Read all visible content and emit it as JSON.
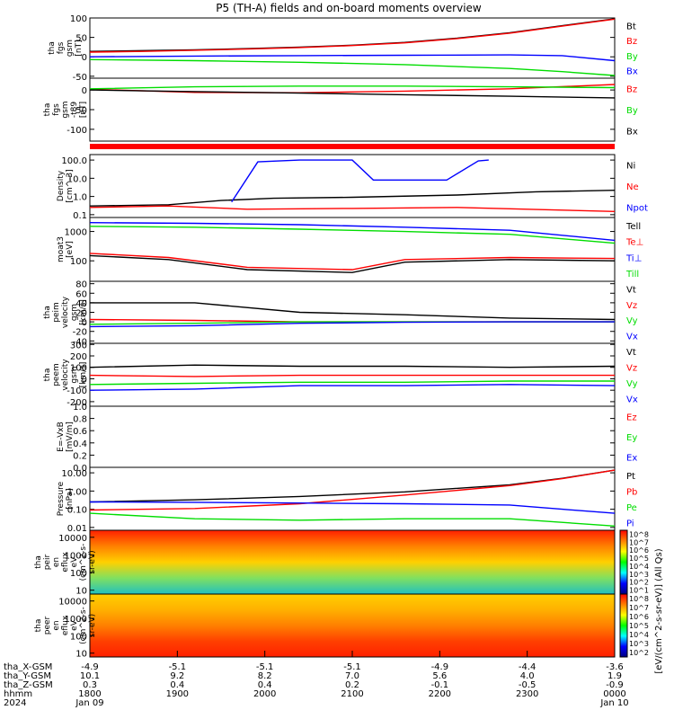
{
  "chart_data": {
    "type": "line",
    "title": "P5 (TH-A) fields and on-board moments overview",
    "panels": [
      {
        "id": "fgs",
        "ylabel": [
          "tha",
          "fgs",
          "gsm",
          "[nT]"
        ],
        "yscale": "linear",
        "ylim": [
          -55,
          100
        ],
        "ticks": [
          100,
          50,
          0,
          -50
        ],
        "series": [
          {
            "name": "Bt",
            "color": "#000000",
            "x": [
              0,
              0.1,
              0.2,
              0.3,
              0.4,
              0.5,
              0.6,
              0.7,
              0.8,
              0.9,
              1.0
            ],
            "y": [
              14,
              16,
              18,
              21,
              25,
              30,
              37,
              48,
              62,
              80,
              98
            ]
          },
          {
            "name": "Bz",
            "color": "#ff0000",
            "x": [
              0,
              0.1,
              0.2,
              0.3,
              0.4,
              0.5,
              0.6,
              0.7,
              0.8,
              0.9,
              1.0
            ],
            "y": [
              12,
              14,
              17,
              20,
              24,
              29,
              36,
              47,
              61,
              79,
              97
            ]
          },
          {
            "name": "By",
            "color": "#00dd00",
            "x": [
              0,
              0.2,
              0.4,
              0.6,
              0.8,
              0.9,
              1.0
            ],
            "y": [
              -7,
              -10,
              -14,
              -20,
              -30,
              -38,
              -48
            ]
          },
          {
            "name": "Bx",
            "color": "#0000ff",
            "x": [
              0,
              0.2,
              0.4,
              0.6,
              0.8,
              0.9,
              1.0
            ],
            "y": [
              0,
              2,
              3,
              4,
              5,
              3,
              -10
            ]
          }
        ]
      },
      {
        "id": "fgs-t89",
        "ylabel": [
          "tha",
          "fgs",
          "gsm",
          "-t89",
          "[nT]"
        ],
        "yscale": "linear",
        "ylim": [
          -130,
          30
        ],
        "ticks": [
          0,
          -50,
          -100
        ],
        "series": [
          {
            "name": "Bz",
            "color": "#ff0000",
            "x": [
              0,
              0.2,
              0.4,
              0.6,
              0.8,
              1.0
            ],
            "y": [
              2,
              -6,
              -7,
              -3,
              3,
              14
            ]
          },
          {
            "name": "By",
            "color": "#00dd00",
            "x": [
              0,
              0.2,
              0.4,
              0.6,
              0.8,
              1.0
            ],
            "y": [
              3,
              8,
              10,
              10,
              8,
              6
            ]
          },
          {
            "name": "Bx",
            "color": "#000000",
            "x": [
              0,
              0.2,
              0.4,
              0.6,
              0.8,
              1.0
            ],
            "y": [
              0,
              -4,
              -8,
              -12,
              -16,
              -20
            ]
          }
        ]
      },
      {
        "id": "density",
        "ylabel": [
          "Density",
          "[cm^-3]"
        ],
        "yscale": "log",
        "ylim": [
          0.07,
          200
        ],
        "ticks": [
          100.0,
          10.0,
          1.0,
          0.1
        ],
        "tick_labels": [
          "100.0",
          "10.0",
          "1.0",
          "0.1"
        ],
        "series": [
          {
            "name": "Ni",
            "color": "#000000",
            "x": [
              0,
              0.15,
              0.25,
              0.35,
              0.5,
              0.7,
              0.85,
              1.0
            ],
            "y": [
              0.3,
              0.35,
              0.6,
              0.8,
              0.9,
              1.2,
              1.8,
              2.2
            ]
          },
          {
            "name": "Ne",
            "color": "#ff0000",
            "x": [
              0,
              0.15,
              0.3,
              0.5,
              0.7,
              1.0
            ],
            "y": [
              0.25,
              0.3,
              0.2,
              0.22,
              0.25,
              0.15
            ]
          },
          {
            "name": "Npot",
            "color": "#0000ff",
            "x": [
              0.27,
              0.32,
              0.4,
              0.5,
              0.54,
              0.58,
              0.64,
              0.68,
              0.74,
              0.76
            ],
            "y": [
              0.5,
              80,
              100,
              100,
              8,
              8,
              8,
              8,
              90,
              100
            ]
          }
        ]
      },
      {
        "id": "temperature",
        "ylabel": [
          "moat3",
          "[eV]"
        ],
        "yscale": "log",
        "ylim": [
          20,
          3000
        ],
        "ticks": [
          1000,
          100
        ],
        "series": [
          {
            "name": "Tell",
            "color": "#000000",
            "x": [
              0,
              0.15,
              0.3,
              0.5,
              0.6,
              0.8,
              1.0
            ],
            "y": [
              150,
              110,
              50,
              40,
              90,
              110,
              100
            ]
          },
          {
            "name": "Te⊥",
            "color": "#ff0000",
            "x": [
              0,
              0.15,
              0.3,
              0.5,
              0.6,
              0.8,
              1.0
            ],
            "y": [
              180,
              130,
              60,
              50,
              110,
              130,
              120
            ]
          },
          {
            "name": "Ti⊥",
            "color": "#0000ff",
            "x": [
              0,
              0.2,
              0.4,
              0.6,
              0.8,
              1.0
            ],
            "y": [
              2000,
              1900,
              1700,
              1400,
              1100,
              500
            ]
          },
          {
            "name": "Till",
            "color": "#00dd00",
            "x": [
              0,
              0.2,
              0.4,
              0.6,
              0.8,
              1.0
            ],
            "y": [
              1500,
              1400,
              1200,
              1000,
              800,
              400
            ]
          }
        ]
      },
      {
        "id": "peim-velocity",
        "ylabel": [
          "tha",
          "peim",
          "velocity",
          "gsm",
          "[km/s]"
        ],
        "yscale": "linear",
        "ylim": [
          -45,
          85
        ],
        "ticks": [
          80,
          60,
          40,
          20,
          0,
          -20,
          -40
        ],
        "series": [
          {
            "name": "Vt",
            "color": "#000000",
            "x": [
              0,
              0.2,
              0.4,
              0.6,
              0.8,
              1.0
            ],
            "y": [
              40,
              40,
              20,
              15,
              8,
              5
            ]
          },
          {
            "name": "Vz",
            "color": "#ff0000",
            "x": [
              0,
              0.2,
              0.4,
              0.6,
              0.8,
              1.0
            ],
            "y": [
              5,
              3,
              0,
              0,
              0,
              0
            ]
          },
          {
            "name": "Vy",
            "color": "#00dd00",
            "x": [
              0,
              0.2,
              0.4,
              0.6,
              0.8,
              1.0
            ],
            "y": [
              -5,
              -3,
              0,
              0,
              0,
              0
            ]
          },
          {
            "name": "Vx",
            "color": "#0000ff",
            "x": [
              0,
              0.2,
              0.4,
              0.6,
              0.8,
              1.0
            ],
            "y": [
              -10,
              -8,
              -3,
              -1,
              0,
              0
            ]
          }
        ]
      },
      {
        "id": "peem-velocity",
        "ylabel": [
          "tha",
          "peem",
          "velocity",
          "gsm",
          "[km/s]"
        ],
        "yscale": "linear",
        "ylim": [
          -240,
          310
        ],
        "ticks": [
          300,
          200,
          100,
          0,
          -100,
          -200
        ],
        "series": [
          {
            "name": "Vt",
            "color": "#000000",
            "x": [
              0,
              0.2,
              0.4,
              0.6,
              0.8,
              1.0
            ],
            "y": [
              100,
              120,
              110,
              110,
              100,
              110
            ]
          },
          {
            "name": "Vz",
            "color": "#ff0000",
            "x": [
              0,
              0.2,
              0.4,
              0.6,
              0.8,
              1.0
            ],
            "y": [
              30,
              20,
              30,
              30,
              30,
              30
            ]
          },
          {
            "name": "Vy",
            "color": "#00dd00",
            "x": [
              0,
              0.2,
              0.4,
              0.6,
              0.8,
              1.0
            ],
            "y": [
              -50,
              -40,
              -30,
              -30,
              -20,
              -20
            ]
          },
          {
            "name": "Vx",
            "color": "#0000ff",
            "x": [
              0,
              0.2,
              0.4,
              0.6,
              0.8,
              1.0
            ],
            "y": [
              -100,
              -90,
              -60,
              -60,
              -50,
              -60
            ]
          }
        ]
      },
      {
        "id": "efield",
        "ylabel": [
          "E=-VxB",
          "[mV/m]"
        ],
        "yscale": "linear",
        "ylim": [
          0,
          1.0
        ],
        "ticks": [
          1.0,
          0.8,
          0.6,
          0.4,
          0.2,
          0.0
        ],
        "tick_labels": [
          "1.0",
          "0.8",
          "0.6",
          "0.4",
          "0.2",
          "0.0"
        ],
        "series": [
          {
            "name": "Ez",
            "color": "#ff0000",
            "x": [],
            "y": []
          },
          {
            "name": "Ey",
            "color": "#00dd00",
            "x": [],
            "y": []
          },
          {
            "name": "Ex",
            "color": "#0000ff",
            "x": [],
            "y": []
          }
        ]
      },
      {
        "id": "pressure",
        "ylabel": [
          "Pressure",
          "[nPa]"
        ],
        "yscale": "log",
        "ylim": [
          0.007,
          20
        ],
        "ticks": [
          10.0,
          1.0,
          0.1,
          0.01
        ],
        "tick_labels": [
          "10.00",
          "1.00",
          "0.10",
          "0.01"
        ],
        "series": [
          {
            "name": "Pt",
            "color": "#000000",
            "x": [
              0,
              0.2,
              0.4,
              0.6,
              0.8,
              0.9,
              1.0
            ],
            "y": [
              0.25,
              0.33,
              0.5,
              0.9,
              2.2,
              5,
              14
            ]
          },
          {
            "name": "Pb",
            "color": "#ff0000",
            "x": [
              0,
              0.2,
              0.4,
              0.6,
              0.8,
              0.9,
              1.0
            ],
            "y": [
              0.09,
              0.11,
              0.2,
              0.6,
              2,
              4.8,
              14
            ]
          },
          {
            "name": "Pe",
            "color": "#00dd00",
            "x": [
              0,
              0.2,
              0.4,
              0.6,
              0.8,
              1.0
            ],
            "y": [
              0.06,
              0.03,
              0.025,
              0.03,
              0.03,
              0.012
            ]
          },
          {
            "name": "Pi",
            "color": "#0000ff",
            "x": [
              0,
              0.2,
              0.4,
              0.6,
              0.8,
              0.9,
              1.0
            ],
            "y": [
              0.25,
              0.24,
              0.22,
              0.2,
              0.17,
              0.1,
              0.06
            ]
          }
        ]
      }
    ],
    "spectrograms": [
      {
        "id": "peir",
        "type": "heatmap",
        "ylabel": [
          "tha",
          "peir",
          "en",
          "eflux",
          "eV",
          "(cm^2-s-",
          "sr-eV)"
        ],
        "yscale": "log",
        "ylim": [
          6,
          25000
        ],
        "ticks": [
          10000,
          1000,
          100,
          10
        ],
        "colorbar": {
          "label": "[eV/(cm^2-s-sr-eV)] (All Qs)",
          "ticks": [
            "10^8",
            "10^7",
            "10^6",
            "10^5",
            "10^4",
            "10^3",
            "10^2",
            "10^1"
          ]
        }
      },
      {
        "id": "peer",
        "type": "heatmap",
        "ylabel": [
          "tha",
          "peer",
          "en",
          "eflux",
          "eV",
          "(cm^2-s-",
          "sr-eV)"
        ],
        "yscale": "log",
        "ylim": [
          6,
          25000
        ],
        "ticks": [
          10000,
          1000,
          100,
          10
        ],
        "colorbar": {
          "label": "[eV/(cm^2-s-sr-eV)] (All Qs)",
          "ticks": [
            "10^8",
            "10^7",
            "10^6",
            "10^5",
            "10^4",
            "10^3",
            "10^2"
          ]
        }
      }
    ],
    "x_axis": {
      "range": [
        "1800 Jan 09",
        "0000 Jan 10"
      ],
      "rows": [
        {
          "label": "tha_X-GSM",
          "values": [
            "-4.9",
            "-5.1",
            "-5.1",
            "-5.1",
            "-4.9",
            "-4.4",
            "-3.6"
          ]
        },
        {
          "label": "tha_Y-GSM",
          "values": [
            "10.1",
            "9.2",
            "8.2",
            "7.0",
            "5.6",
            "4.0",
            "1.9"
          ]
        },
        {
          "label": "tha_Z-GSM",
          "values": [
            "0.3",
            "0.4",
            "0.4",
            "0.2",
            "-0.1",
            "-0.5",
            "-0.9"
          ]
        },
        {
          "label": "hhmm",
          "values": [
            "1800",
            "1900",
            "2000",
            "2100",
            "2200",
            "2300",
            "0000"
          ]
        },
        {
          "label": "2024",
          "values": [
            "Jan 09",
            "",
            "",
            "",
            "",
            "",
            "Jan 10"
          ]
        }
      ]
    }
  }
}
